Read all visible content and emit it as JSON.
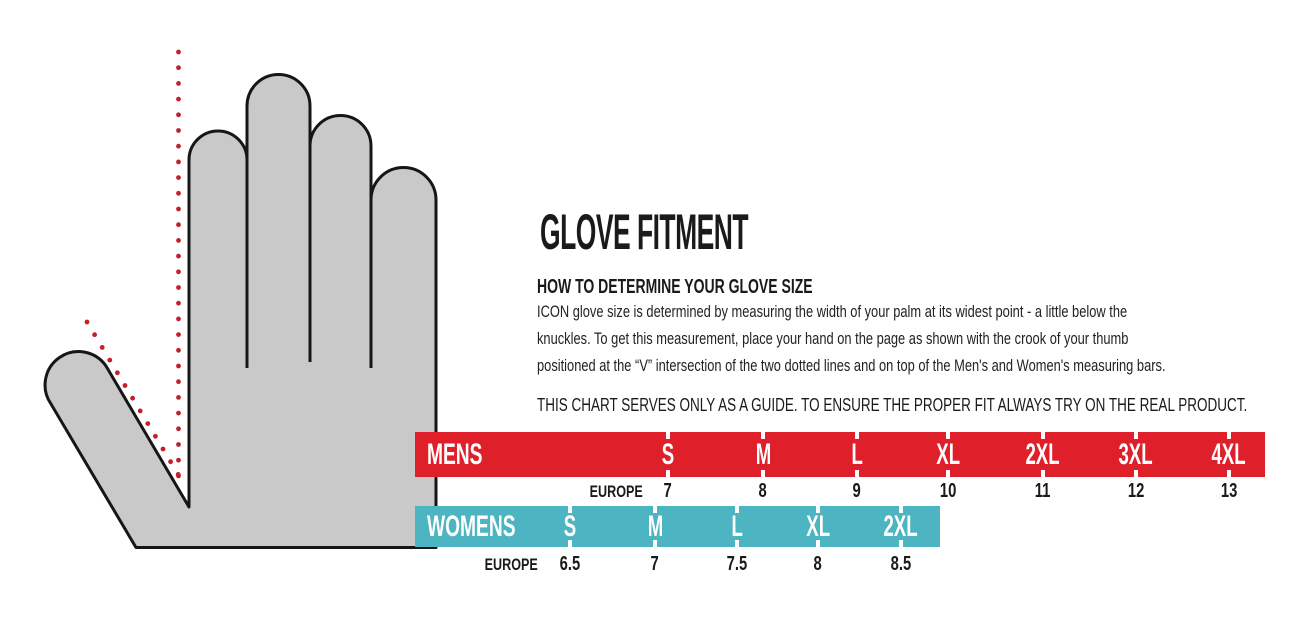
{
  "header": {
    "title": "GLOVE FITMENT",
    "subtitle": "HOW TO DETERMINE YOUR GLOVE SIZE"
  },
  "instructions": {
    "lines": [
      "ICON glove size is determined by measuring the width of your palm at its widest point - a little below the",
      "knuckles. To get this measurement, place your hand on the page as shown with the crook of your thumb",
      "positioned at the “V” intersection of the two dotted lines and on top of the Men's and Women's measuring bars."
    ]
  },
  "disclaimer": "THIS CHART SERVES ONLY AS A GUIDE. TO ENSURE THE PROPER FIT ALWAYS TRY ON THE REAL PRODUCT.",
  "size_chart": {
    "europe_label": "EUROPE",
    "mens": {
      "label": "MENS",
      "sizes": [
        {
          "size": "S",
          "europe": "7"
        },
        {
          "size": "M",
          "europe": "8"
        },
        {
          "size": "L",
          "europe": "9"
        },
        {
          "size": "XL",
          "europe": "10"
        },
        {
          "size": "2XL",
          "europe": "11"
        },
        {
          "size": "3XL",
          "europe": "12"
        },
        {
          "size": "4XL",
          "europe": "13"
        }
      ]
    },
    "womens": {
      "label": "WOMENS",
      "sizes": [
        {
          "size": "S",
          "europe": "6.5"
        },
        {
          "size": "M",
          "europe": "7"
        },
        {
          "size": "L",
          "europe": "7.5"
        },
        {
          "size": "XL",
          "europe": "8"
        },
        {
          "size": "2XL",
          "europe": "8.5"
        }
      ]
    }
  },
  "colors": {
    "mens_bar": "#df1f2a",
    "womens_bar": "#4db4c2",
    "dotted_line": "#c4202a",
    "hand_fill": "#c9c9c9",
    "hand_outline": "#161616",
    "text": "#1a1a1a",
    "bar_text": "#ffffff"
  }
}
